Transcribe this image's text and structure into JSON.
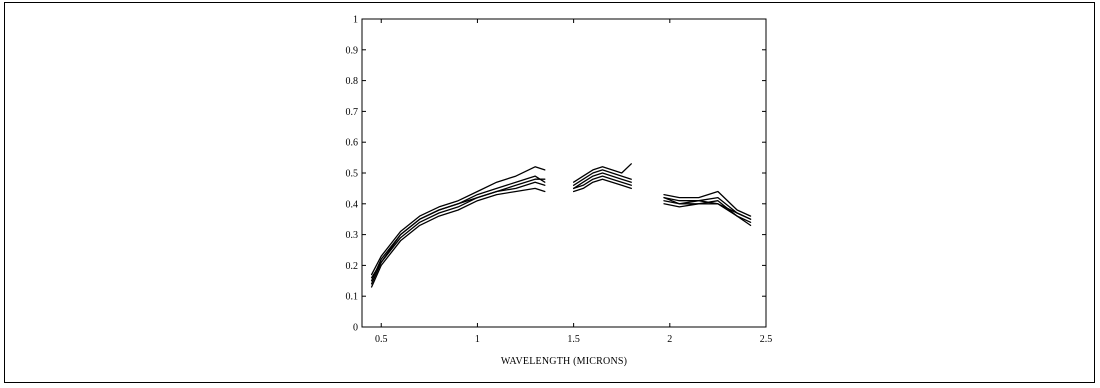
{
  "chart_data": {
    "type": "line",
    "title": "",
    "xlabel": "WAVELENGTH (MICRONS)",
    "ylabel": "",
    "xlim": [
      0.4,
      2.5
    ],
    "ylim": [
      0,
      1
    ],
    "x_ticks": [
      "0.5",
      "1",
      "1.5",
      "2",
      "2.5"
    ],
    "y_ticks": [
      "0",
      "0.1",
      "0.2",
      "0.3",
      "0.4",
      "0.5",
      "0.6",
      "0.7",
      "0.8",
      "0.9",
      "1"
    ],
    "grid": false,
    "legend": "none",
    "line_color": "#000000",
    "series": [
      {
        "segments": [
          {
            "x": [
              0.45,
              0.5,
              0.6,
              0.7,
              0.8,
              0.9,
              1.0,
              1.1,
              1.2,
              1.3,
              1.35
            ],
            "y": [
              0.15,
              0.22,
              0.3,
              0.35,
              0.38,
              0.4,
              0.43,
              0.45,
              0.47,
              0.49,
              0.47
            ]
          },
          {
            "x": [
              1.5,
              1.55,
              1.6,
              1.65,
              1.7,
              1.75,
              1.8
            ],
            "y": [
              0.46,
              0.48,
              0.5,
              0.51,
              0.5,
              0.49,
              0.48
            ]
          },
          {
            "x": [
              1.97,
              2.05,
              2.15,
              2.25,
              2.35,
              2.42
            ],
            "y": [
              0.42,
              0.41,
              0.41,
              0.4,
              0.37,
              0.35
            ]
          }
        ]
      },
      {
        "segments": [
          {
            "x": [
              0.45,
              0.5,
              0.6,
              0.7,
              0.8,
              0.9,
              1.0,
              1.1,
              1.2,
              1.3,
              1.35
            ],
            "y": [
              0.13,
              0.2,
              0.28,
              0.33,
              0.36,
              0.38,
              0.41,
              0.43,
              0.44,
              0.45,
              0.44
            ]
          },
          {
            "x": [
              1.5,
              1.55,
              1.6,
              1.65,
              1.7,
              1.75,
              1.8
            ],
            "y": [
              0.44,
              0.45,
              0.47,
              0.48,
              0.47,
              0.46,
              0.45
            ]
          },
          {
            "x": [
              1.97,
              2.05,
              2.15,
              2.25,
              2.35,
              2.42
            ],
            "y": [
              0.41,
              0.4,
              0.4,
              0.41,
              0.36,
              0.34
            ]
          }
        ]
      },
      {
        "segments": [
          {
            "x": [
              0.45,
              0.5,
              0.6,
              0.7,
              0.8,
              0.9,
              1.0,
              1.1,
              1.2,
              1.3,
              1.35
            ],
            "y": [
              0.17,
              0.23,
              0.31,
              0.36,
              0.39,
              0.41,
              0.44,
              0.47,
              0.49,
              0.52,
              0.51
            ]
          },
          {
            "x": [
              1.5,
              1.55,
              1.6,
              1.65,
              1.7,
              1.75,
              1.8
            ],
            "y": [
              0.47,
              0.49,
              0.51,
              0.52,
              0.51,
              0.5,
              0.53
            ]
          },
          {
            "x": [
              1.97,
              2.05,
              2.15,
              2.25,
              2.35,
              2.42
            ],
            "y": [
              0.43,
              0.42,
              0.42,
              0.44,
              0.38,
              0.36
            ]
          }
        ]
      },
      {
        "segments": [
          {
            "x": [
              0.45,
              0.5,
              0.6,
              0.7,
              0.8,
              0.9,
              1.0,
              1.1,
              1.2,
              1.3,
              1.35
            ],
            "y": [
              0.14,
              0.21,
              0.29,
              0.34,
              0.37,
              0.39,
              0.42,
              0.44,
              0.45,
              0.47,
              0.46
            ]
          },
          {
            "x": [
              1.5,
              1.55,
              1.6,
              1.65,
              1.7,
              1.75,
              1.8
            ],
            "y": [
              0.45,
              0.46,
              0.48,
              0.49,
              0.48,
              0.47,
              0.46
            ]
          },
          {
            "x": [
              1.97,
              2.05,
              2.15,
              2.25,
              2.35,
              2.42
            ],
            "y": [
              0.42,
              0.4,
              0.41,
              0.42,
              0.37,
              0.35
            ]
          }
        ]
      },
      {
        "segments": [
          {
            "x": [
              0.45,
              0.5,
              0.6,
              0.7,
              0.8,
              0.9,
              1.0,
              1.1,
              1.2,
              1.3,
              1.35
            ],
            "y": [
              0.16,
              0.21,
              0.3,
              0.35,
              0.38,
              0.4,
              0.42,
              0.44,
              0.46,
              0.48,
              0.48
            ]
          },
          {
            "x": [
              1.5,
              1.55,
              1.6,
              1.65,
              1.7,
              1.75,
              1.8
            ],
            "y": [
              0.45,
              0.47,
              0.49,
              0.5,
              0.49,
              0.48,
              0.47
            ]
          },
          {
            "x": [
              1.97,
              2.05,
              2.15,
              2.25,
              2.35,
              2.42
            ],
            "y": [
              0.4,
              0.39,
              0.4,
              0.4,
              0.36,
              0.33
            ]
          }
        ]
      }
    ]
  }
}
